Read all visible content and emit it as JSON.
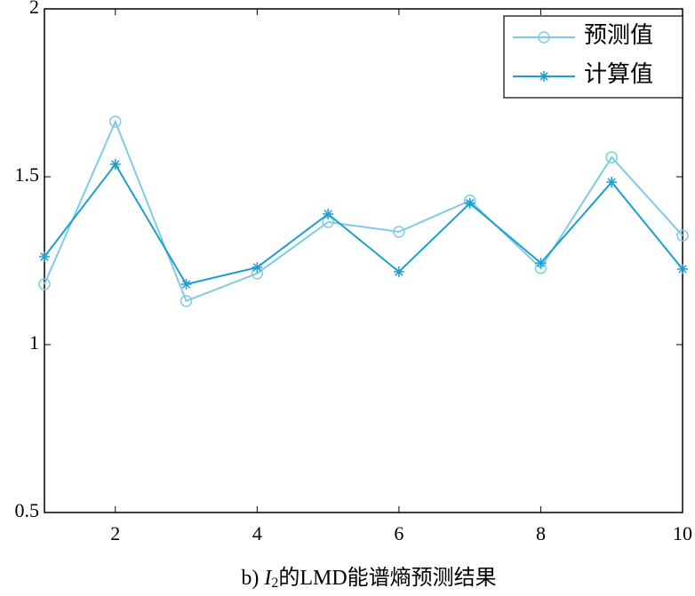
{
  "chart_data": {
    "type": "line",
    "title_parts": {
      "prefix": "b)",
      "symbol": "I",
      "subscript": "2",
      "text": "的LMD能谱熵预测结果"
    },
    "x": [
      1,
      2,
      3,
      4,
      5,
      6,
      7,
      8,
      9,
      10
    ],
    "series": [
      {
        "name": "预测值",
        "color": "#80cbe4",
        "marker": "o",
        "values": [
          1.18,
          1.664,
          1.13,
          1.212,
          1.365,
          1.336,
          1.429,
          1.228,
          1.558,
          1.325
        ]
      },
      {
        "name": "计算值",
        "color": "#1b9fcf",
        "marker": "*",
        "values": [
          1.262,
          1.537,
          1.18,
          1.23,
          1.389,
          1.217,
          1.421,
          1.243,
          1.484,
          1.225
        ]
      }
    ],
    "xlim": [
      1,
      10
    ],
    "xticks": [
      2,
      4,
      6,
      8,
      10
    ],
    "ylim": [
      0.5,
      2
    ],
    "yticks": [
      0.5,
      1,
      1.5,
      2
    ],
    "grid": false,
    "legend": "upper-right"
  }
}
